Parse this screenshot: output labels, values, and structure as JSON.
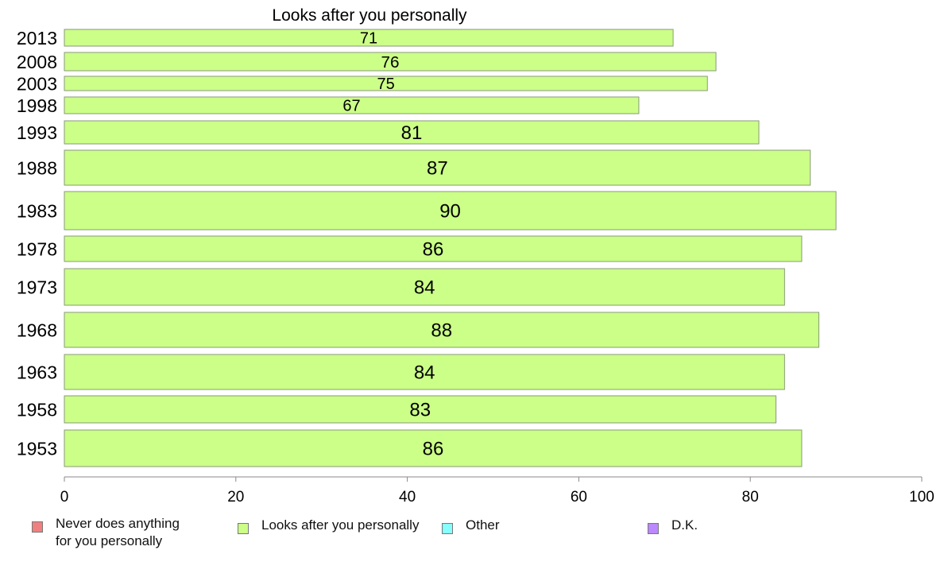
{
  "chart_data": {
    "type": "bar",
    "orientation": "horizontal",
    "title": "Looks after you personally",
    "xlabel": "",
    "ylabel": "",
    "xlim": [
      0,
      100
    ],
    "x_ticks": [
      "0",
      "20",
      "40",
      "60",
      "80",
      "100"
    ],
    "grid": false,
    "legend_position": "bottom",
    "categories": [
      "2013",
      "2008",
      "2003",
      "1998",
      "1993",
      "1988",
      "1983",
      "1978",
      "1973",
      "1968",
      "1963",
      "1958",
      "1953"
    ],
    "series": [
      {
        "name": "Looks after you personally",
        "color": "#ccff88",
        "values": [
          71,
          76,
          75,
          67,
          81,
          87,
          90,
          86,
          84,
          88,
          84,
          83,
          86
        ],
        "labels": [
          "71",
          "76",
          "75",
          "67",
          "81",
          "87",
          "90",
          "86",
          "84",
          "88",
          "84",
          "83",
          "86"
        ]
      }
    ],
    "legend": [
      {
        "label": "Never does anything\nfor you personally",
        "color": "#f08080"
      },
      {
        "label": "Looks after you personally",
        "color": "#ccff88"
      },
      {
        "label": "Other",
        "color": "#88ffff"
      },
      {
        "label": "D.K.",
        "color": "#bb88ff"
      }
    ]
  }
}
